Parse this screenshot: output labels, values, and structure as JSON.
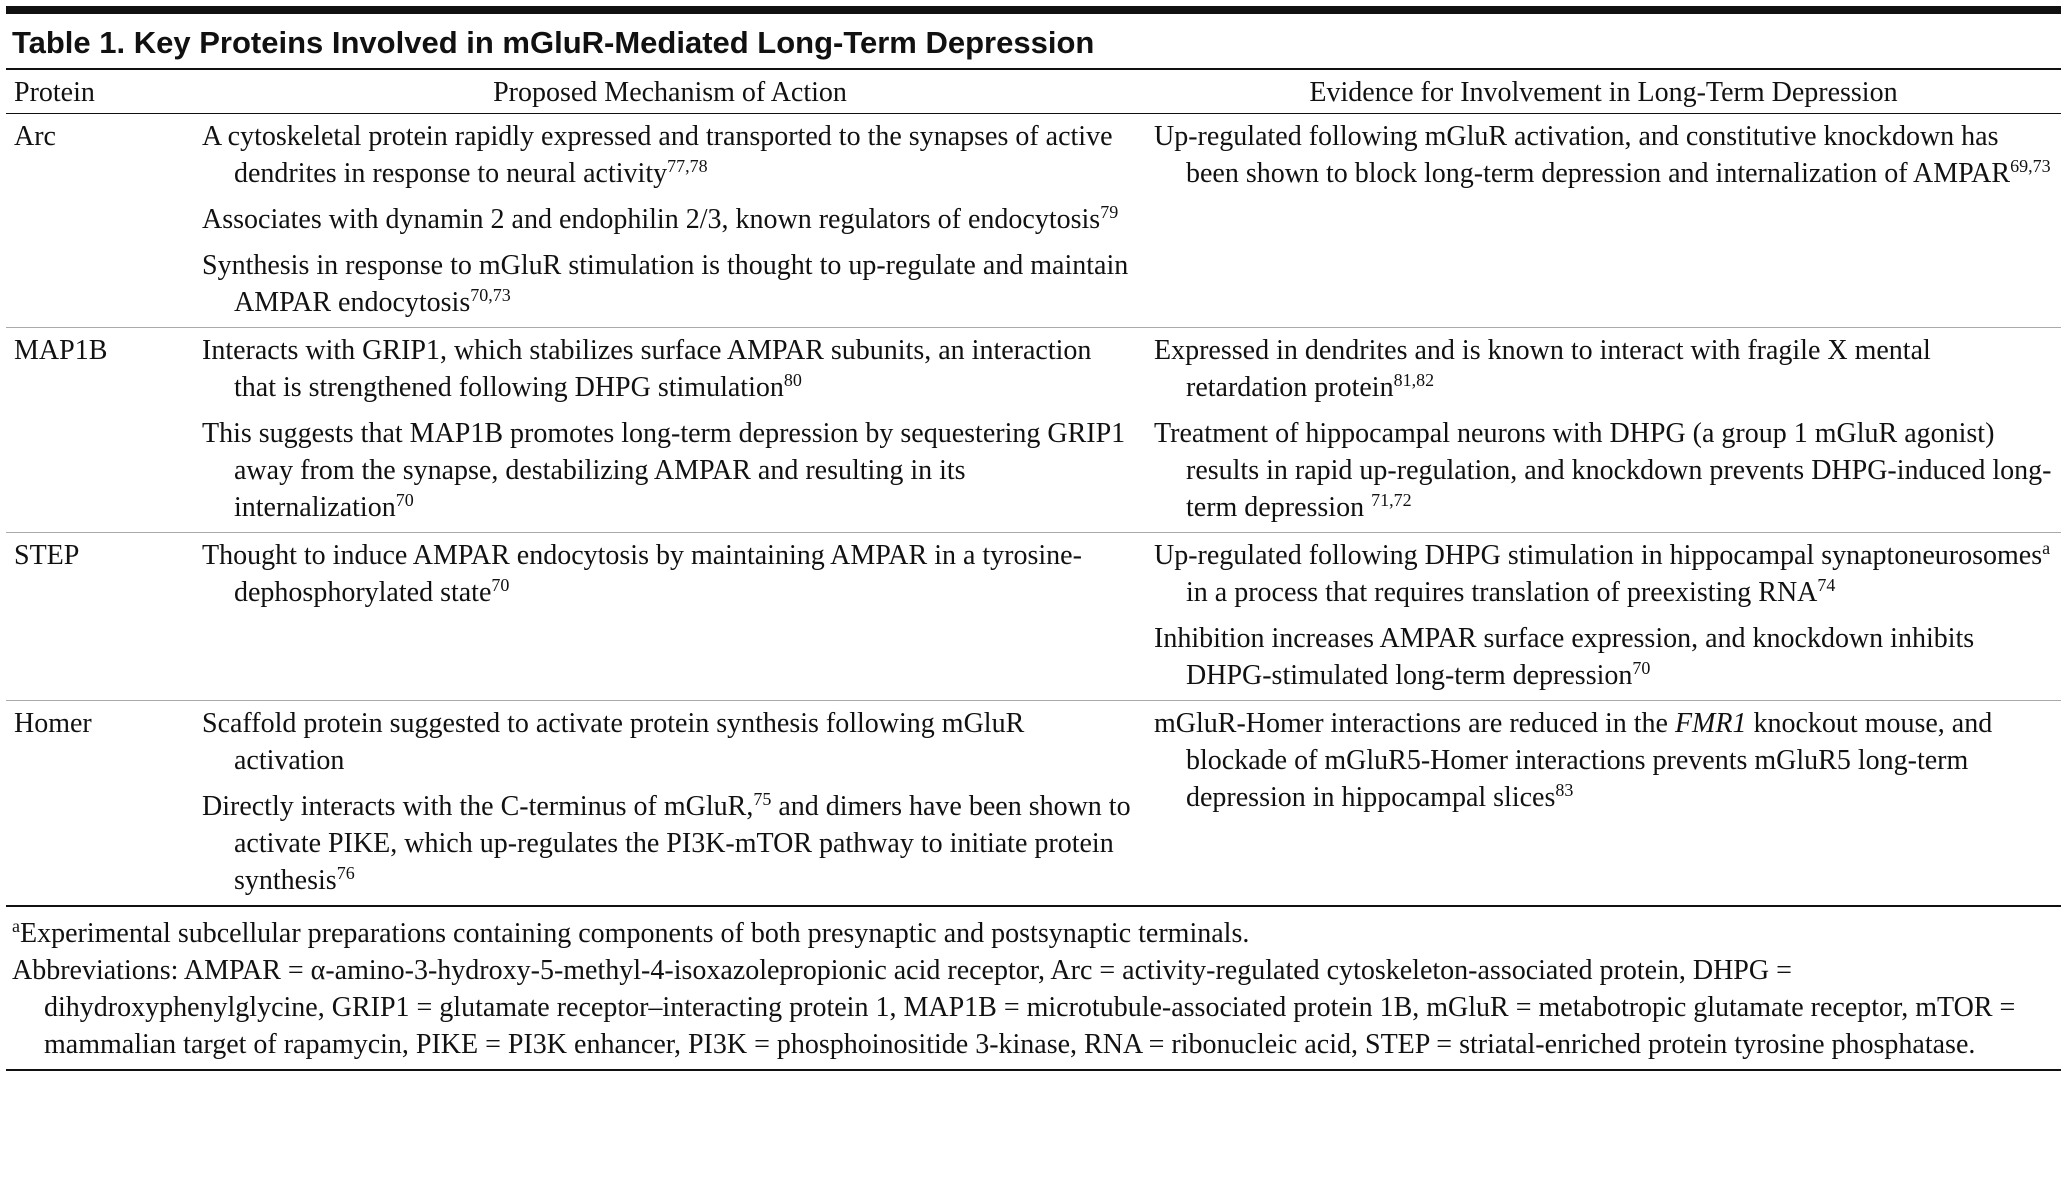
{
  "title": "Table 1. Key Proteins Involved in mGluR-Mediated Long-Term Depression",
  "table": {
    "headers": [
      "Protein",
      "Proposed Mechanism of Action",
      "Evidence for Involvement in Long-Term Depression"
    ],
    "rows": [
      {
        "protein": "Arc",
        "mechanism": [
          [
            "A cytoskeletal protein rapidly expressed and transported to the synapses of active dendrites in response to neural activity",
            {
              "sup": "77,78"
            }
          ],
          [
            "Associates with dynamin 2 and endophilin 2/3, known regulators of endocytosis",
            {
              "sup": "79"
            }
          ],
          [
            "Synthesis in response to mGluR stimulation is thought to up-regulate and maintain AMPAR endocytosis",
            {
              "sup": "70,73"
            }
          ]
        ],
        "evidence": [
          [
            "Up-regulated following mGluR activation, and constitutive knockdown has been shown to block long-term depression and internalization of AMPAR",
            {
              "sup": "69,73"
            }
          ]
        ]
      },
      {
        "protein": "MAP1B",
        "mechanism": [
          [
            "Interacts with GRIP1, which stabilizes surface AMPAR subunits, an interaction that is strengthened following DHPG stimulation",
            {
              "sup": "80"
            }
          ],
          [
            "This suggests that MAP1B promotes long-term depression by sequestering GRIP1 away from the synapse, destabilizing AMPAR and resulting in its internalization",
            {
              "sup": "70"
            }
          ]
        ],
        "evidence": [
          [
            "Expressed in dendrites and is known to interact with fragile X mental retardation protein",
            {
              "sup": "81,82"
            }
          ],
          [
            "Treatment of hippocampal neurons with DHPG (a group 1 mGluR agonist) results in rapid up-regulation, and knockdown prevents DHPG-induced long-term depression ",
            {
              "sup": "71,72"
            }
          ]
        ]
      },
      {
        "protein": "STEP",
        "mechanism": [
          [
            "Thought to induce AMPAR endocytosis by maintaining AMPAR in a tyrosine-dephosphorylated state",
            {
              "sup": "70"
            }
          ]
        ],
        "evidence": [
          [
            "Up-regulated following DHPG stimulation in hippocampal synaptoneurosomes",
            {
              "sup": "a"
            },
            " in a process that requires translation of preexisting RNA",
            {
              "sup": "74"
            }
          ],
          [
            "Inhibition increases AMPAR surface expression, and knockdown inhibits DHPG-stimulated long-term depression",
            {
              "sup": "70"
            }
          ]
        ]
      },
      {
        "protein": "Homer",
        "mechanism": [
          [
            "Scaffold protein suggested to activate protein synthesis following mGluR activation"
          ],
          [
            "Directly interacts with the C-terminus of mGluR,",
            {
              "sup": "75"
            },
            " and dimers have been shown to activate PIKE, which up-regulates the PI3K-mTOR pathway to initiate protein synthesis",
            {
              "sup": "76"
            }
          ]
        ],
        "evidence": [
          [
            "mGluR-Homer interactions are reduced in the ",
            {
              "em": "FMR1"
            },
            " knockout mouse, and blockade of mGluR5-Homer interactions prevents mGluR5 long-term depression in hippocampal slices",
            {
              "sup": "83"
            }
          ]
        ]
      }
    ]
  },
  "footnotes": [
    [
      {
        "sup": "a"
      },
      "Experimental subcellular preparations containing components of both presynaptic and postsynaptic terminals."
    ],
    [
      "Abbreviations: AMPAR = α-amino-3-hydroxy-5-methyl-4-isoxazolepropionic acid receptor, Arc = activity-regulated cytoskeleton-associated protein, DHPG = dihydroxyphenylglycine, GRIP1 = glutamate receptor–interacting protein 1, MAP1B = microtubule-associated protein 1B, mGluR = metabotropic glutamate receptor, mTOR = mammalian target of rapamycin, PIKE = PI3K enhancer, PI3K = phosphoinositide 3-kinase, RNA = ribonucleic acid, STEP = striatal-enriched protein tyrosine phosphatase."
    ]
  ]
}
